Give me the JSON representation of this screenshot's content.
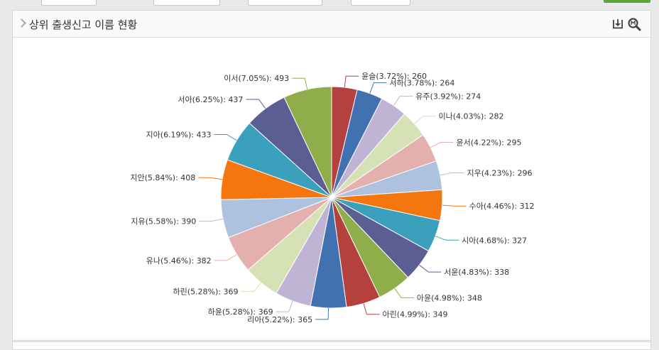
{
  "panel": {
    "title": "상위 출생신고 이름 현황",
    "icons": [
      "download-icon",
      "zoom-icon"
    ]
  },
  "chart_data": {
    "type": "pie",
    "title": "",
    "slices": [
      {
        "name": "윤슬",
        "percent": 3.72,
        "value": 260,
        "label": "윤슬(3.72%): 260",
        "color": "#b5413f"
      },
      {
        "name": "서하",
        "percent": 3.78,
        "value": 264,
        "label": "서하(3.78%): 264",
        "color": "#4171b0"
      },
      {
        "name": "유주",
        "percent": 3.92,
        "value": 274,
        "label": "유주(3.92%): 274",
        "color": "#c0b4d5"
      },
      {
        "name": "이나",
        "percent": 4.03,
        "value": 282,
        "label": "이나(4.03%): 282",
        "color": "#d6e1b6"
      },
      {
        "name": "윤서",
        "percent": 4.22,
        "value": 295,
        "label": "윤서(4.22%): 295",
        "color": "#e3b0ae"
      },
      {
        "name": "지우",
        "percent": 4.23,
        "value": 296,
        "label": "지우(4.23%): 296",
        "color": "#aec2df"
      },
      {
        "name": "수아",
        "percent": 4.46,
        "value": 312,
        "label": "수아(4.46%): 312",
        "color": "#f5760e"
      },
      {
        "name": "시아",
        "percent": 4.68,
        "value": 327,
        "label": "시아(4.68%): 327",
        "color": "#3aa0bc"
      },
      {
        "name": "서윤",
        "percent": 4.83,
        "value": 338,
        "label": "서윤(4.83%): 338",
        "color": "#5b5e92"
      },
      {
        "name": "아윤",
        "percent": 4.98,
        "value": 348,
        "label": "아윤(4.98%): 348",
        "color": "#8fae4b"
      },
      {
        "name": "아린",
        "percent": 4.99,
        "value": 349,
        "label": "아린(4.99%): 349",
        "color": "#b5413f"
      },
      {
        "name": "리아",
        "percent": 5.22,
        "value": 365,
        "label": "리아(5.22%): 365",
        "color": "#4171b0"
      },
      {
        "name": "하윤",
        "percent": 5.28,
        "value": 369,
        "label": "하윤(5.28%): 369",
        "color": "#c0b4d5"
      },
      {
        "name": "하린",
        "percent": 5.28,
        "value": 369,
        "label": "하린(5.28%): 369",
        "color": "#d6e1b6"
      },
      {
        "name": "유나",
        "percent": 5.46,
        "value": 382,
        "label": "유나(5.46%): 382",
        "color": "#e3b0ae"
      },
      {
        "name": "지유",
        "percent": 5.58,
        "value": 390,
        "label": "지유(5.58%): 390",
        "color": "#aec2df"
      },
      {
        "name": "지안",
        "percent": 5.84,
        "value": 408,
        "label": "지안(5.84%): 408",
        "color": "#f5760e"
      },
      {
        "name": "지아",
        "percent": 6.19,
        "value": 433,
        "label": "지아(6.19%): 433",
        "color": "#3aa0bc"
      },
      {
        "name": "서아",
        "percent": 6.25,
        "value": 437,
        "label": "서아(6.25%): 437",
        "color": "#5b5e92"
      },
      {
        "name": "이서",
        "percent": 7.05,
        "value": 493,
        "label": "이서(7.05%): 493",
        "color": "#8fae4b"
      }
    ],
    "start_angle": "top",
    "direction": "clockwise",
    "legend": "none",
    "data_labels": "outside-with-connectors"
  }
}
